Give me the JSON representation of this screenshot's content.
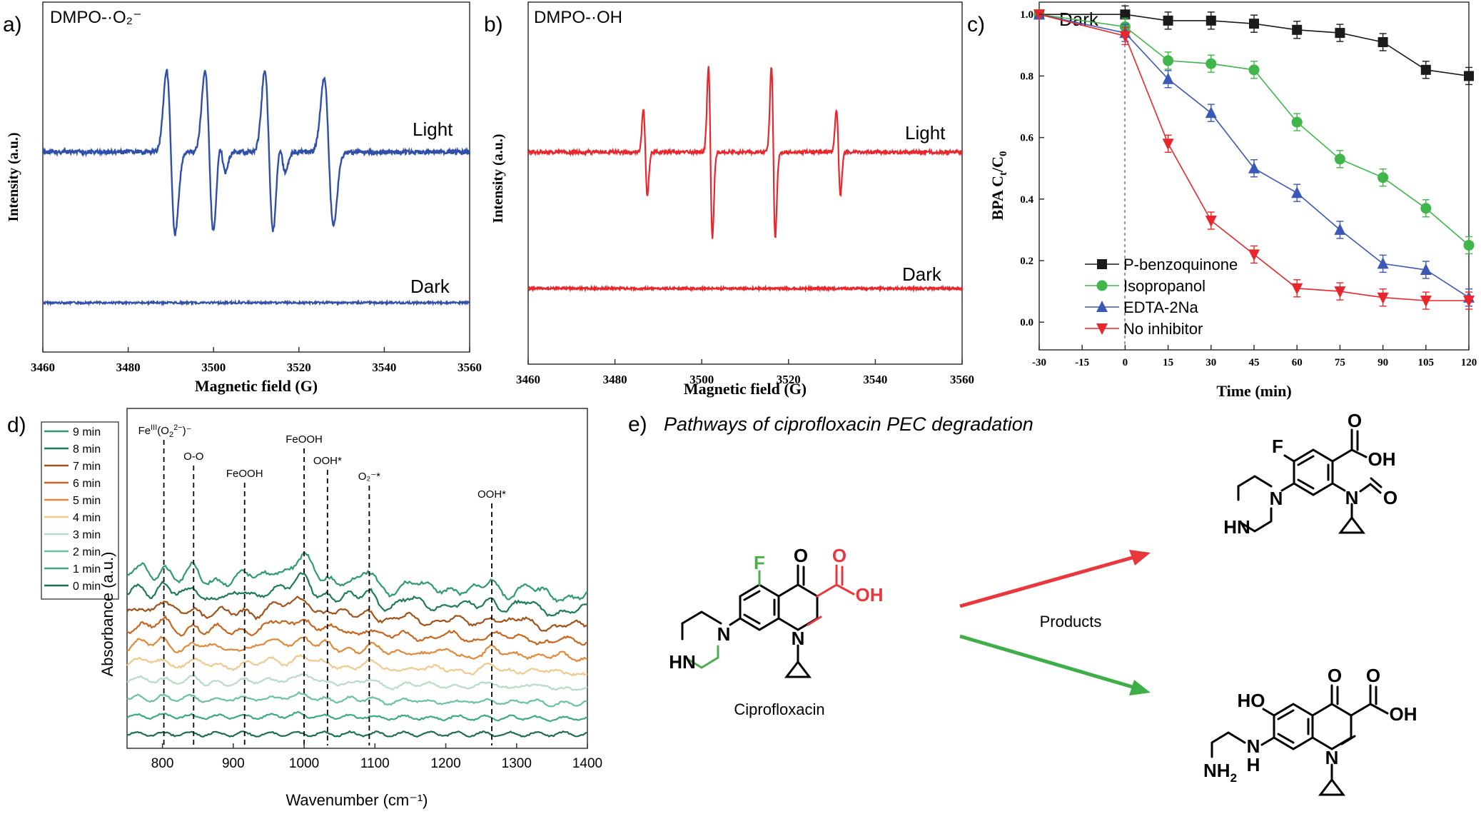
{
  "figure": {
    "colors": {
      "blue": "#2f4fa8",
      "red": "#e8262b",
      "black": "#1a1a1a",
      "green": "#3fb54a",
      "navy": "#3b57b7",
      "arrow_red": "#e8383d",
      "arrow_green": "#3fae49",
      "struct_green": "#4cae4c",
      "struct_red": "#e8383d"
    }
  },
  "chart_data": [
    {
      "panel": "a)",
      "type": "line",
      "title": "DMPO-·O₂⁻",
      "xlabel": "Magnetic field (G)",
      "ylabel": "Intensity (a.u.)",
      "xlim": [
        3460,
        3560
      ],
      "xticks": [
        "3460",
        "3480",
        "3500",
        "3520",
        "3540",
        "3560"
      ],
      "series": [
        {
          "name": "Light",
          "baseline": 0.55,
          "peaks": [
            [
              3490,
              0.5,
              1.0
            ],
            [
              3499,
              0.5,
              1.0
            ],
            [
              3502,
              0.12,
              0.8
            ],
            [
              3513,
              0.5,
              1.0
            ],
            [
              3516,
              0.12,
              0.8
            ],
            [
              3527,
              0.45,
              1.1
            ]
          ]
        },
        {
          "name": "Dark",
          "baseline": 0.0,
          "peaks": []
        }
      ],
      "labels": {
        "light": "Light",
        "dark": "Dark"
      }
    },
    {
      "panel": "b)",
      "type": "line",
      "title": "DMPO-·OH",
      "xlabel": "Magnetic field (G)",
      "ylabel": "Intensity (a.u.)",
      "xlim": [
        3460,
        3560
      ],
      "xticks": [
        "3460",
        "3480",
        "3500",
        "3520",
        "3540",
        "3560"
      ],
      "series": [
        {
          "name": "Light",
          "baseline": 0.55,
          "peaks": [
            [
              3487,
              0.26,
              0.45
            ],
            [
              3502,
              0.52,
              0.45
            ],
            [
              3516.5,
              0.52,
              0.45
            ],
            [
              3531.5,
              0.26,
              0.45
            ]
          ]
        },
        {
          "name": "Dark",
          "baseline": 0.0,
          "peaks": []
        }
      ],
      "labels": {
        "light": "Light",
        "dark": "Dark"
      }
    },
    {
      "panel": "c)",
      "type": "line",
      "xlabel": "Time (min)",
      "ylabel": "BPA Ct/C0",
      "ylabel_main": "BPA C",
      "ylabel_sub1": "t",
      "ylabel_mid": "/C",
      "ylabel_sub2": "0",
      "xlim": [
        -30,
        120
      ],
      "ylim": [
        -0.09,
        1.04
      ],
      "x": [
        -30,
        0,
        15,
        30,
        45,
        60,
        75,
        90,
        105,
        120
      ],
      "xticks": [
        "-30",
        "-15",
        "0",
        "15",
        "30",
        "45",
        "60",
        "75",
        "90",
        "105",
        "120"
      ],
      "yticks": [
        "0.0",
        "0.2",
        "0.4",
        "0.6",
        "0.8",
        "1.0"
      ],
      "annotation": "Dark",
      "series": [
        {
          "name": "P-benzoquinone",
          "marker": "square",
          "values": [
            1.0,
            1.0,
            0.98,
            0.98,
            0.97,
            0.95,
            0.94,
            0.91,
            0.82,
            0.8
          ]
        },
        {
          "name": "Isopropanol",
          "marker": "circle",
          "values": [
            1.0,
            0.96,
            0.85,
            0.84,
            0.82,
            0.65,
            0.53,
            0.47,
            0.37,
            0.25
          ]
        },
        {
          "name": "EDTA-2Na",
          "marker": "triangle-up",
          "values": [
            1.0,
            0.94,
            0.79,
            0.68,
            0.5,
            0.42,
            0.3,
            0.19,
            0.17,
            0.08
          ]
        },
        {
          "name": "No inhibitor",
          "marker": "triangle-down",
          "values": [
            1.0,
            0.93,
            0.58,
            0.33,
            0.22,
            0.11,
            0.1,
            0.08,
            0.07,
            0.07
          ]
        }
      ]
    },
    {
      "panel": "d)",
      "type": "line",
      "xlabel": "Wavenumber (cm⁻¹)",
      "ylabel": "Absorbance (a.u.)",
      "xlim": [
        750,
        1400
      ],
      "xticks": [
        "800",
        "900",
        "1000",
        "1100",
        "1200",
        "1300",
        "1400"
      ],
      "legend": [
        "9 min",
        "8 min",
        "7 min",
        "6 min",
        "5 min",
        "4 min",
        "3 min",
        "2 min",
        "1 min",
        "0 min"
      ],
      "series_colors": [
        "#2e9a73",
        "#1f7a5c",
        "#a0521a",
        "#c8661f",
        "#e08a3a",
        "#f0c98f",
        "#b8dcc8",
        "#6cc0a6",
        "#3ea987",
        "#1d6e55"
      ],
      "peaks": [
        {
          "label": "Feᴵᴵᴵ(O₂²⁻)⁻",
          "x": 802
        },
        {
          "label": "O-O",
          "x": 844
        },
        {
          "label": "FeOOH",
          "x": 916
        },
        {
          "label": "FeOOH",
          "x": 1000
        },
        {
          "label": "OOH*",
          "x": 1033
        },
        {
          "label": "O₂⁻*",
          "x": 1092
        },
        {
          "label": "OOH*",
          "x": 1265
        }
      ],
      "peak_label_main": "Fe",
      "peak_label_sup": "III",
      "peak_label_rest": "(O",
      "peak_label_sub": "2",
      "peak_label_sup2": "2−",
      "peak_label_end": ")⁻"
    }
  ],
  "panel_e": {
    "panel": "e)",
    "title": "Pathways of ciprofloxacin PEC degradation",
    "reactant_label": "Ciprofloxacin",
    "arrow_label": "Products",
    "atoms": {
      "F": "F",
      "O": "O",
      "OH": "OH",
      "N": "N",
      "HN": "HN",
      "HO": "HO",
      "H": "H",
      "NH": "NH",
      "NH2_main": "NH",
      "NH2_sub": "2"
    }
  }
}
